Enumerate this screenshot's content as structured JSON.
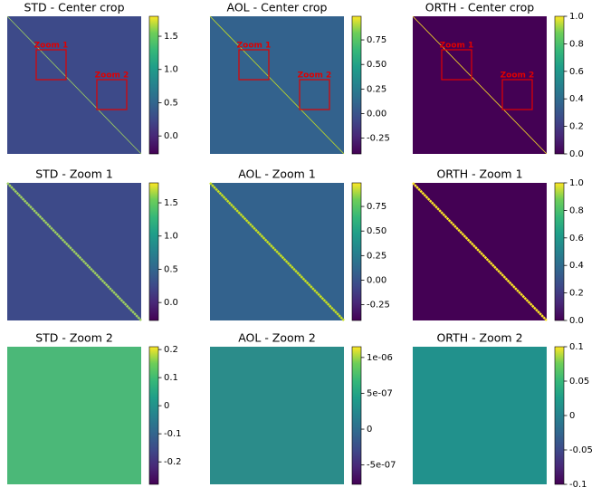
{
  "chart_data": [
    {
      "type": "heatmap",
      "title": "STD - Center crop",
      "color": "#3d4a89",
      "annotations": [
        "Zoom 1",
        "Zoom 2"
      ],
      "ylim": [
        -0.27,
        1.8
      ],
      "yticks": [
        {
          "value": 0,
          "label": "0.0"
        },
        0.5,
        {
          "value": 1,
          "label": "1.0"
        },
        1.5
      ]
    },
    {
      "type": "heatmap",
      "title": "AOL - Center crop",
      "color": "#33628d",
      "annotations": [
        "Zoom 1",
        "Zoom 2"
      ],
      "ylim": [
        -0.41,
        0.99
      ],
      "yticks": [
        -0.25,
        {
          "value": 0,
          "label": "0.00"
        },
        0.25,
        {
          "value": 0.5,
          "label": "0.50"
        },
        0.75
      ]
    },
    {
      "type": "heatmap",
      "title": "ORTH - Center crop",
      "color": "#440154",
      "annotations": [
        "Zoom 1",
        "Zoom 2"
      ],
      "ylim": [
        0,
        1
      ],
      "yticks": [
        {
          "value": 0,
          "label": "0.0"
        },
        0.2,
        0.4,
        0.6,
        0.8,
        {
          "value": 1,
          "label": "1.0"
        }
      ]
    },
    {
      "type": "heatmap",
      "title": "STD - Zoom 1",
      "color": "#3d4a89",
      "ylim": [
        -0.27,
        1.8
      ],
      "yticks": [
        {
          "value": 0,
          "label": "0.0"
        },
        0.5,
        {
          "value": 1,
          "label": "1.0"
        },
        1.5
      ]
    },
    {
      "type": "heatmap",
      "title": "AOL - Zoom 1",
      "color": "#33628d",
      "ylim": [
        -0.41,
        0.99
      ],
      "yticks": [
        -0.25,
        {
          "value": 0,
          "label": "0.00"
        },
        0.25,
        {
          "value": 0.5,
          "label": "0.50"
        },
        0.75
      ]
    },
    {
      "type": "heatmap",
      "title": "ORTH - Zoom 1",
      "color": "#440154",
      "ylim": [
        0,
        1
      ],
      "yticks": [
        {
          "value": 0,
          "label": "0.0"
        },
        0.2,
        0.4,
        0.6,
        0.8,
        {
          "value": 1,
          "label": "1.0"
        }
      ]
    },
    {
      "type": "heatmap",
      "title": "STD - Zoom 2",
      "color": "#4bb878",
      "ylim": [
        -0.28,
        0.21
      ],
      "yticks": [
        -0.2,
        -0.1,
        0,
        0.1,
        0.2
      ]
    },
    {
      "type": "heatmap",
      "title": "AOL - Zoom 2",
      "color": "#2b8c8a",
      "ylim": [
        -7.7e-07,
        1.15e-06
      ],
      "yticks": [
        {
          "value": -5e-07,
          "label": "-5e-07"
        },
        0,
        {
          "value": 5e-07,
          "label": "5e-07"
        },
        {
          "value": 1e-06,
          "label": "1e-06"
        }
      ]
    },
    {
      "type": "heatmap",
      "title": "ORTH - Zoom 2",
      "color": "#21918c",
      "ylim": [
        -0.1,
        0.1
      ],
      "yticks": [
        -0.1,
        -0.05,
        0,
        0.05,
        0.1
      ]
    }
  ]
}
